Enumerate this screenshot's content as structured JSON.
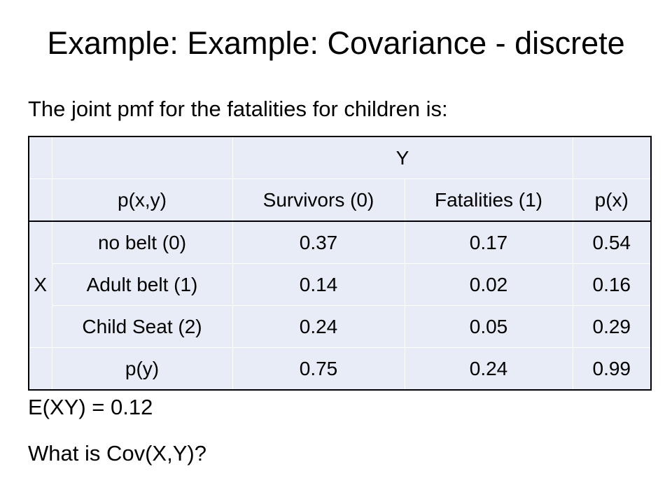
{
  "slide": {
    "title": "Example: Example: Covariance - discrete",
    "intro": "The joint pmf for the fatalities for children is:",
    "expectation": "E(XY) = 0.12",
    "question": "What is Cov(X,Y)?"
  },
  "table": {
    "y_header": "Y",
    "x_header": "X",
    "corner": "p(x,y)",
    "columns": [
      "Survivors (0)",
      "Fatalities (1)",
      "p(x)"
    ],
    "rows": [
      {
        "label": "no belt (0)",
        "values": [
          "0.37",
          "0.17",
          "0.54"
        ]
      },
      {
        "label": "Adult belt (1)",
        "values": [
          "0.14",
          "0.02",
          "0.16"
        ]
      },
      {
        "label": "Child Seat (2)",
        "values": [
          "0.24",
          "0.05",
          "0.29"
        ]
      }
    ],
    "total_row": {
      "label": "p(y)",
      "values": [
        "0.75",
        "0.24",
        "0.99"
      ]
    }
  }
}
